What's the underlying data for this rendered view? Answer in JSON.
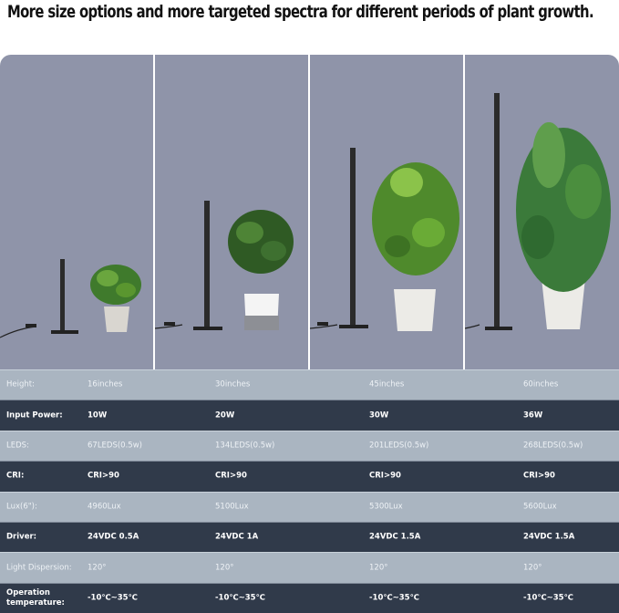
{
  "title": "More size options and more targeted spectra for different periods of plant growth.",
  "colors": {
    "panel_bg": "#8f94a9",
    "row_light": "#aab5c1",
    "row_dark": "#303a4a"
  },
  "panels": [
    {
      "lamp_height": "16inches"
    },
    {
      "lamp_height": "30inches"
    },
    {
      "lamp_height": "45inches"
    },
    {
      "lamp_height": "60inches"
    }
  ],
  "table": {
    "rows": [
      {
        "label": "Height:",
        "values": [
          "16inches",
          "30inches",
          "45inches",
          "60inches"
        ]
      },
      {
        "label": "Input Power:",
        "values": [
          "10W",
          "20W",
          "30W",
          "36W"
        ]
      },
      {
        "label": "LEDS:",
        "values": [
          "67LEDS(0.5w)",
          "134LEDS(0.5w)",
          "201LEDS(0.5w)",
          "268LEDS(0.5w)"
        ]
      },
      {
        "label": "CRI:",
        "values": [
          "CRI>90",
          "CRI>90",
          "CRI>90",
          "CRI>90"
        ]
      },
      {
        "label": "Lux(6\"):",
        "values": [
          "4960Lux",
          "5100Lux",
          "5300Lux",
          "5600Lux"
        ]
      },
      {
        "label": "Driver:",
        "values": [
          "24VDC 0.5A",
          "24VDC 1A",
          "24VDC 1.5A",
          "24VDC 1.5A"
        ]
      },
      {
        "label": "Light Dispersion:",
        "values": [
          "120°",
          "120°",
          "120°",
          "120°"
        ]
      },
      {
        "label": "Operation temperature:",
        "values": [
          "-10℃~35℃",
          "-10℃~35℃",
          "-10℃~35℃",
          "-10℃~35℃"
        ]
      }
    ]
  }
}
